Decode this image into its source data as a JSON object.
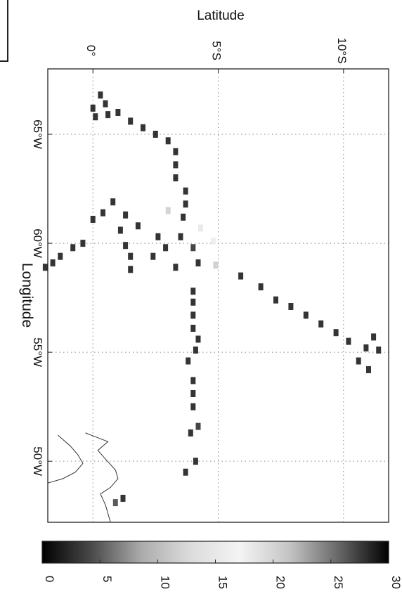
{
  "chart_data": {
    "type": "heatmap",
    "orientation": "rotated-90",
    "ylabel": "Latitude",
    "xlabel": "Longitude",
    "lat_ticks": [
      {
        "value": 0,
        "label": "0°"
      },
      {
        "value": -5,
        "label": "5°S"
      },
      {
        "value": -10,
        "label": "10°S"
      }
    ],
    "lon_ticks": [
      {
        "value": -65,
        "label": "65°W"
      },
      {
        "value": -60,
        "label": "60°W"
      },
      {
        "value": -55,
        "label": "55°W"
      },
      {
        "value": -50,
        "label": "50°W"
      }
    ],
    "lat_range": [
      -11.8,
      1.8
    ],
    "lon_range": [
      -68,
      -47.2
    ],
    "grid": true,
    "colorbar": {
      "min": 0,
      "max": 30,
      "ticks": [
        "0",
        "5",
        "10",
        "15",
        "20",
        "25",
        "30"
      ],
      "colors": [
        "#000000",
        "#4a4a4a",
        "#ababab",
        "#dcdcdc",
        "#f4f4f4",
        "#c4c4c4",
        "#666666",
        "#000000"
      ]
    },
    "cells": [
      [
        -0.3,
        -66.8,
        3
      ],
      [
        -0.5,
        -66.4,
        3
      ],
      [
        0,
        -66.2,
        3
      ],
      [
        -0.1,
        -65.8,
        3
      ],
      [
        -0.6,
        -65.9,
        3
      ],
      [
        -1.0,
        -66.0,
        3
      ],
      [
        -1.5,
        -65.6,
        3
      ],
      [
        -2.0,
        -65.3,
        3
      ],
      [
        -2.5,
        -65.0,
        3
      ],
      [
        -3.0,
        -64.7,
        3
      ],
      [
        -3.3,
        -64.2,
        3
      ],
      [
        -3.3,
        -63.6,
        3
      ],
      [
        -3.3,
        -63.0,
        3
      ],
      [
        -3.7,
        -62.4,
        3
      ],
      [
        -3.7,
        -61.8,
        3
      ],
      [
        -3.6,
        -61.2,
        3
      ],
      [
        -0.8,
        -61.9,
        3
      ],
      [
        -0.4,
        -61.4,
        3
      ],
      [
        0.0,
        -61.1,
        3
      ],
      [
        -1.1,
        -60.6,
        3
      ],
      [
        -1.3,
        -61.3,
        3
      ],
      [
        -1.8,
        -60.8,
        3
      ],
      [
        -2.6,
        -60.3,
        3
      ],
      [
        -2.9,
        -59.8,
        3
      ],
      [
        -3.5,
        -60.3,
        3
      ],
      [
        -4.0,
        -59.8,
        4
      ],
      [
        -4.3,
        -60.7,
        18
      ],
      [
        -4.8,
        -60.1,
        16
      ],
      [
        -4.2,
        -59.1,
        3
      ],
      [
        -1.5,
        -58.8,
        3
      ],
      [
        -1.5,
        -59.4,
        3
      ],
      [
        -1.3,
        -59.9,
        3
      ],
      [
        -2.4,
        -59.4,
        3
      ],
      [
        -3.3,
        -58.9,
        3
      ],
      [
        -5.9,
        -58.5,
        3
      ],
      [
        -6.7,
        -58.0,
        3
      ],
      [
        -7.3,
        -57.4,
        3
      ],
      [
        -7.9,
        -57.1,
        3
      ],
      [
        -8.5,
        -56.7,
        3
      ],
      [
        -9.1,
        -56.3,
        3
      ],
      [
        -9.7,
        -55.9,
        3
      ],
      [
        -10.2,
        -55.5,
        3
      ],
      [
        -10.9,
        -55.2,
        3
      ],
      [
        -11.2,
        -55.7,
        3
      ],
      [
        -11.4,
        -55.1,
        3
      ],
      [
        -10.6,
        -54.6,
        3
      ],
      [
        -11.0,
        -54.2,
        3
      ],
      [
        -3.0,
        -61.5,
        20
      ],
      [
        -4.9,
        -59.0,
        12
      ],
      [
        0.4,
        -60.0,
        3
      ],
      [
        0.8,
        -59.8,
        3
      ],
      [
        1.3,
        -59.4,
        3
      ],
      [
        1.6,
        -59.1,
        3
      ],
      [
        1.9,
        -58.9,
        3
      ],
      [
        -4.0,
        -57.8,
        3
      ],
      [
        -4.0,
        -57.3,
        3
      ],
      [
        -4.0,
        -56.7,
        3
      ],
      [
        -4.0,
        -56.1,
        3
      ],
      [
        -4.2,
        -55.6,
        3
      ],
      [
        -4.1,
        -55.1,
        3
      ],
      [
        -3.8,
        -54.6,
        3
      ],
      [
        -4.0,
        -53.7,
        3
      ],
      [
        -4.0,
        -53.1,
        3
      ],
      [
        -4.0,
        -52.5,
        3
      ],
      [
        -4.2,
        -51.6,
        4
      ],
      [
        -3.9,
        -51.3,
        3
      ],
      [
        -4.1,
        -50.0,
        3
      ],
      [
        -3.7,
        -49.5,
        3
      ],
      [
        -1.2,
        -48.3,
        3
      ],
      [
        -0.9,
        -48.1,
        5
      ]
    ],
    "coastline": [
      [
        0.3,
        -51.3
      ],
      [
        -0.6,
        -50.9
      ],
      [
        -0.2,
        -50.5
      ],
      [
        -0.5,
        -50.1
      ],
      [
        -0.9,
        -49.6
      ],
      [
        -1.0,
        -49.2
      ],
      [
        -0.7,
        -48.8
      ],
      [
        -0.3,
        -48.5
      ],
      [
        -0.5,
        -48.0
      ],
      [
        -0.6,
        -47.6
      ],
      [
        -0.7,
        -47.2
      ]
    ],
    "land_edge": [
      [
        1.4,
        -51.2
      ],
      [
        0.9,
        -50.7
      ],
      [
        0.6,
        -50.3
      ],
      [
        0.4,
        -49.9
      ],
      [
        0.7,
        -49.5
      ],
      [
        1.2,
        -49.2
      ],
      [
        1.8,
        -49.0
      ]
    ]
  }
}
